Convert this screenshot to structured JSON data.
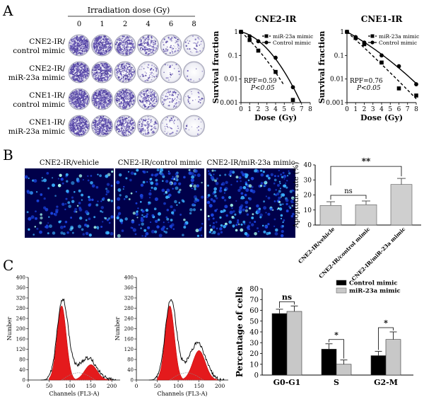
{
  "panels": {
    "A": {
      "letter": "A",
      "colony": {
        "dose_title": "Irradiation dose (Gy)",
        "doses": [
          "0",
          "1",
          "2",
          "4",
          "6",
          "8"
        ],
        "rows": [
          {
            "label_1": "CNE2-IR/",
            "label_2": "control mimic",
            "densities": [
              1.0,
              0.85,
              0.6,
              0.35,
              0.15,
              0.08
            ]
          },
          {
            "label_1": "CNE2-IR/",
            "label_2": "miR-23a mimic",
            "densities": [
              1.0,
              0.8,
              0.45,
              0.12,
              0.05,
              0.02
            ]
          },
          {
            "label_1": "CNE1-IR/",
            "label_2": "control mimic",
            "densities": [
              1.0,
              0.95,
              0.75,
              0.4,
              0.15,
              0.05
            ]
          },
          {
            "label_1": "CNE1-IR/",
            "label_2": "miR-23a mimic",
            "densities": [
              1.0,
              0.85,
              0.55,
              0.25,
              0.08,
              0.03
            ]
          }
        ]
      },
      "charts": [
        {
          "type": "line",
          "title": "CNE2-IR",
          "xlabel": "Dose (Gy)",
          "ylabel": "Survival fraction",
          "xlim": [
            0,
            8
          ],
          "ylim": [
            0.001,
            1
          ],
          "yscale": "log",
          "xticks": [
            "0",
            "1",
            "2",
            "3",
            "4",
            "5",
            "6",
            "7",
            "8"
          ],
          "yticks": [
            "1",
            "0.1",
            "0.01",
            "0.001"
          ],
          "legend": [
            "miR-23a mimic",
            "Control mimic"
          ],
          "annotation_1": "RPF=0.59",
          "annotation_2": "P<0.05",
          "series": [
            {
              "name": "miR-23a mimic",
              "x": [
                0,
                1,
                2,
                4,
                6
              ],
              "y": [
                1,
                0.45,
                0.16,
                0.02,
                0.0013
              ],
              "fit_end": 5.0
            },
            {
              "name": "Control mimic",
              "x": [
                0,
                1,
                2,
                4,
                6
              ],
              "y": [
                1,
                0.65,
                0.4,
                0.08,
                0.0045
              ],
              "fit_end": 8.0
            }
          ]
        },
        {
          "type": "line",
          "title": "CNE1-IR",
          "xlabel": "Dose (Gy)",
          "ylabel": "Survival fraction",
          "xlim": [
            0,
            8
          ],
          "ylim": [
            0.001,
            1
          ],
          "yscale": "log",
          "xticks": [
            "0",
            "1",
            "2",
            "3",
            "4",
            "5",
            "6",
            "7",
            "8"
          ],
          "yticks": [
            "1",
            "0.1",
            "0.01",
            "0.001"
          ],
          "legend": [
            "miR-23a mimic",
            "Control mimic"
          ],
          "annotation_1": "RPF=0.76",
          "annotation_2": "P<0.05",
          "series": [
            {
              "name": "miR-23a mimic",
              "x": [
                0,
                1,
                2,
                4,
                6,
                8
              ],
              "y": [
                1,
                0.55,
                0.3,
                0.05,
                0.004,
                0.002
              ],
              "fit_end": 8.0
            },
            {
              "name": "Control mimic",
              "x": [
                0,
                1,
                2,
                4,
                6,
                8
              ],
              "y": [
                1,
                0.6,
                0.35,
                0.1,
                0.035,
                0.006
              ],
              "fit_end": 8.0
            }
          ]
        }
      ]
    },
    "B": {
      "letter": "B",
      "images": [
        {
          "label": "CNE2-IR/vehicle",
          "intensity": 0.6
        },
        {
          "label": "CNE2-IR/control mimic",
          "intensity": 0.8
        },
        {
          "label": "CNE2-IR/miR-23a mimic",
          "intensity": 1.0
        }
      ],
      "chart": {
        "type": "bar",
        "ylabel": "Apoptotic rate (%)",
        "ylim": [
          0,
          40
        ],
        "yticks": [
          "0",
          "10",
          "20",
          "30",
          "40"
        ],
        "categories": [
          "CNE2-IR/vehicle",
          "CNE2-IR/control mimic",
          "CNE2-IR/miR-23a mimic"
        ],
        "values": [
          13,
          13.5,
          27
        ],
        "errors": [
          2.5,
          2.5,
          4
        ],
        "sig_ns": "ns",
        "sig_star": "**"
      }
    },
    "C": {
      "letter": "C",
      "histograms": [
        {
          "xlabel": "Channels (FL3-A)",
          "ylabel": "Number",
          "xticks": [
            "0",
            "50",
            "100",
            "150",
            "200"
          ],
          "yticks": [
            "0",
            "40",
            "80",
            "120",
            "160",
            "200",
            "240",
            "280",
            "320",
            "360",
            "400"
          ],
          "g1_peak": 290,
          "g2_peak": 60
        },
        {
          "xlabel": "Channels (FL3-A)",
          "ylabel": "Number",
          "xticks": [
            "0",
            "50",
            "100",
            "150",
            "200"
          ],
          "yticks": [
            "0",
            "40",
            "80",
            "120",
            "160",
            "200",
            "240",
            "280",
            "320",
            "360",
            "400"
          ],
          "g1_peak": 290,
          "g2_peak": 115
        }
      ],
      "chart": {
        "type": "bar",
        "ylabel": "Percentage of cells",
        "ylim": [
          0,
          80
        ],
        "yticks": [
          "0",
          "10",
          "20",
          "30",
          "40",
          "50",
          "60",
          "70",
          "80"
        ],
        "categories": [
          "G0-G1",
          "S",
          "G2-M"
        ],
        "series": [
          {
            "name": "Control mimic",
            "values": [
              57,
              24,
              18
            ],
            "errors": [
              4,
              5,
              4
            ],
            "color": "#000000"
          },
          {
            "name": "miR-23a mimic",
            "values": [
              59,
              10,
              33
            ],
            "errors": [
              5,
              4,
              7
            ],
            "color": "#c8c8c8"
          }
        ],
        "sig": [
          "ns",
          "*",
          "*"
        ]
      }
    }
  }
}
